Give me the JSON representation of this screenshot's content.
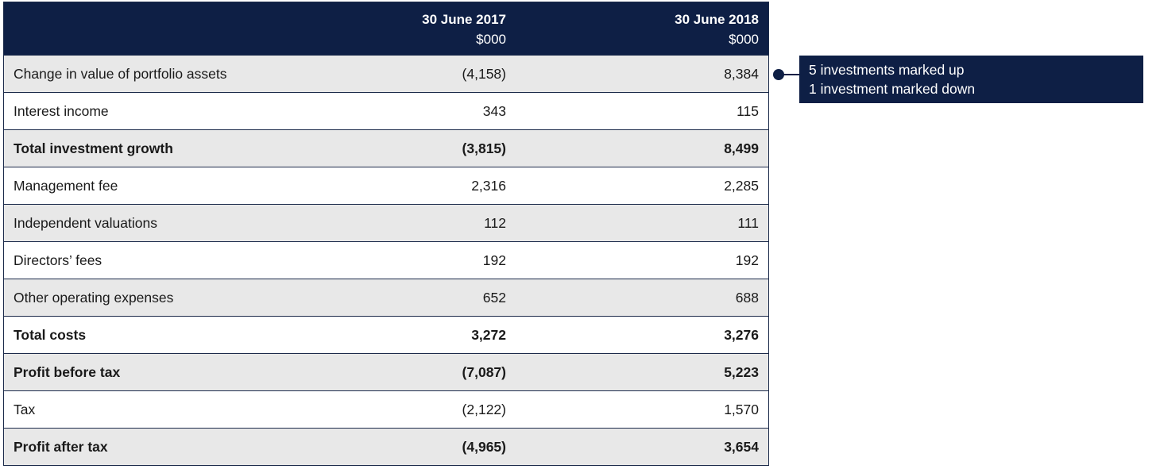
{
  "header": {
    "col_2017_date": "30 June 2017",
    "col_2017_unit": "$000",
    "col_2018_date": "30 June 2018",
    "col_2018_unit": "$000"
  },
  "rows": [
    {
      "label": "Change in value of portfolio assets",
      "v2017": "(4,158)",
      "v2018": "8,384"
    },
    {
      "label": "Interest income",
      "v2017": "343",
      "v2018": "115"
    },
    {
      "label": "Total investment growth",
      "v2017": "(3,815)",
      "v2018": "8,499"
    },
    {
      "label": "Management fee",
      "v2017": "2,316",
      "v2018": "2,285"
    },
    {
      "label": "Independent valuations",
      "v2017": "112",
      "v2018": "111"
    },
    {
      "label": "Directors’ fees",
      "v2017": "192",
      "v2018": "192"
    },
    {
      "label": "Other operating expenses",
      "v2017": "652",
      "v2018": "688"
    },
    {
      "label": "Total costs",
      "v2017": "3,272",
      "v2018": "3,276"
    },
    {
      "label": "Profit before tax",
      "v2017": "(7,087)",
      "v2018": "5,223"
    },
    {
      "label": "Tax",
      "v2017": "(2,122)",
      "v2018": "1,570"
    },
    {
      "label": "Profit after tax",
      "v2017": "(4,965)",
      "v2018": "3,654"
    }
  ],
  "callout": {
    "line1": "5 investments marked up",
    "line2": "1 investment marked down"
  },
  "colors": {
    "header_bg": "#0e1f45",
    "shaded_row": "#e8e8e8"
  }
}
